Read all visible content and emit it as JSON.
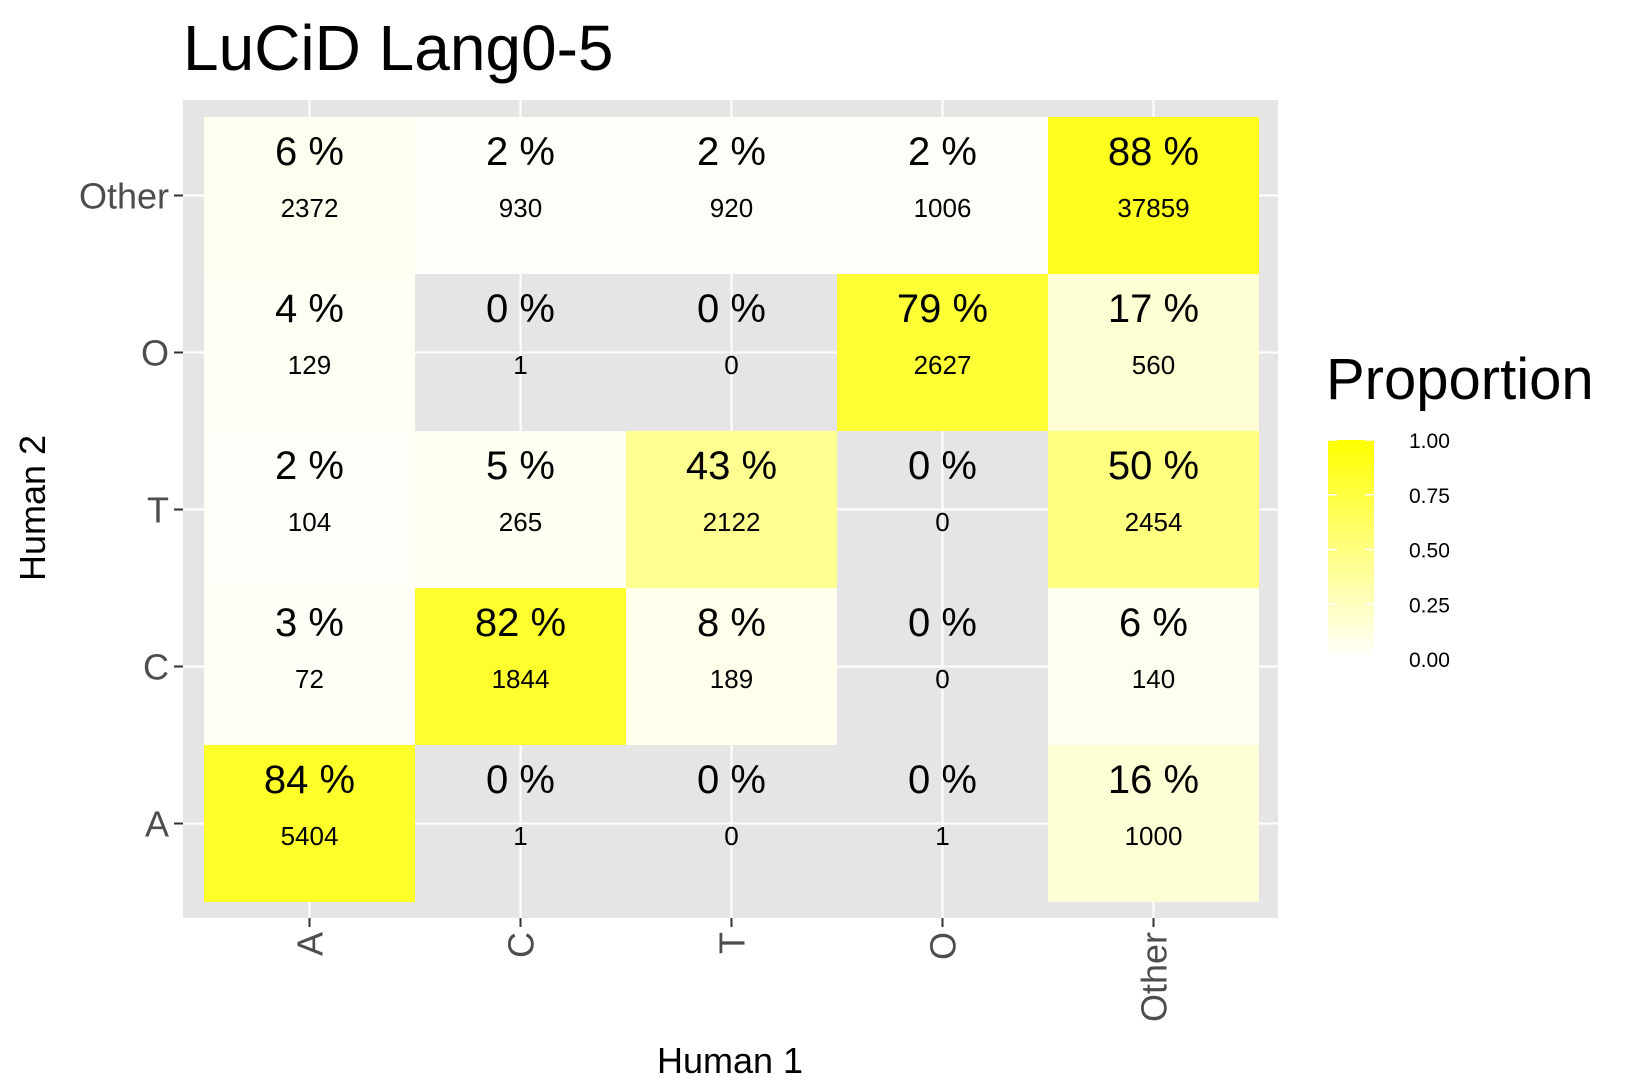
{
  "chart_data": {
    "type": "heatmap",
    "title": "LuCiD Lang0-5",
    "xlabel": "Human 1",
    "ylabel": "Human 2",
    "x_categories": [
      "A",
      "C",
      "T",
      "O",
      "Other"
    ],
    "y_categories": [
      "A",
      "C",
      "T",
      "O",
      "Other"
    ],
    "cells": [
      {
        "x": "A",
        "y": "Other",
        "proportion": 0.06,
        "pct_label": "6 %",
        "count": "2372"
      },
      {
        "x": "C",
        "y": "Other",
        "proportion": 0.02,
        "pct_label": "2 %",
        "count": "930"
      },
      {
        "x": "T",
        "y": "Other",
        "proportion": 0.02,
        "pct_label": "2 %",
        "count": "920"
      },
      {
        "x": "O",
        "y": "Other",
        "proportion": 0.02,
        "pct_label": "2 %",
        "count": "1006"
      },
      {
        "x": "Other",
        "y": "Other",
        "proportion": 0.88,
        "pct_label": "88 %",
        "count": "37859"
      },
      {
        "x": "A",
        "y": "O",
        "proportion": 0.04,
        "pct_label": "4 %",
        "count": "129"
      },
      {
        "x": "C",
        "y": "O",
        "proportion": 0.0,
        "pct_label": "0 %",
        "count": "1"
      },
      {
        "x": "T",
        "y": "O",
        "proportion": 0.0,
        "pct_label": "0 %",
        "count": "0"
      },
      {
        "x": "O",
        "y": "O",
        "proportion": 0.79,
        "pct_label": "79 %",
        "count": "2627"
      },
      {
        "x": "Other",
        "y": "O",
        "proportion": 0.17,
        "pct_label": "17 %",
        "count": "560"
      },
      {
        "x": "A",
        "y": "T",
        "proportion": 0.02,
        "pct_label": "2 %",
        "count": "104"
      },
      {
        "x": "C",
        "y": "T",
        "proportion": 0.05,
        "pct_label": "5 %",
        "count": "265"
      },
      {
        "x": "T",
        "y": "T",
        "proportion": 0.43,
        "pct_label": "43 %",
        "count": "2122"
      },
      {
        "x": "O",
        "y": "T",
        "proportion": 0.0,
        "pct_label": "0 %",
        "count": "0"
      },
      {
        "x": "Other",
        "y": "T",
        "proportion": 0.5,
        "pct_label": "50 %",
        "count": "2454"
      },
      {
        "x": "A",
        "y": "C",
        "proportion": 0.03,
        "pct_label": "3 %",
        "count": "72"
      },
      {
        "x": "C",
        "y": "C",
        "proportion": 0.82,
        "pct_label": "82 %",
        "count": "1844"
      },
      {
        "x": "T",
        "y": "C",
        "proportion": 0.08,
        "pct_label": "8 %",
        "count": "189"
      },
      {
        "x": "O",
        "y": "C",
        "proportion": 0.0,
        "pct_label": "0 %",
        "count": "0"
      },
      {
        "x": "Other",
        "y": "C",
        "proportion": 0.06,
        "pct_label": "6 %",
        "count": "140"
      },
      {
        "x": "A",
        "y": "A",
        "proportion": 0.84,
        "pct_label": "84 %",
        "count": "5404"
      },
      {
        "x": "C",
        "y": "A",
        "proportion": 0.0,
        "pct_label": "0 %",
        "count": "1"
      },
      {
        "x": "T",
        "y": "A",
        "proportion": 0.0,
        "pct_label": "0 %",
        "count": "0"
      },
      {
        "x": "O",
        "y": "A",
        "proportion": 0.0,
        "pct_label": "0 %",
        "count": "1"
      },
      {
        "x": "Other",
        "y": "A",
        "proportion": 0.16,
        "pct_label": "16 %",
        "count": "1000"
      }
    ],
    "legend": {
      "title": "Proportion",
      "ticks": [
        "1.00",
        "0.75",
        "0.50",
        "0.25",
        "0.00"
      ],
      "tick_values": [
        1.0,
        0.75,
        0.5,
        0.25,
        0.0
      ],
      "placement": "right"
    },
    "colors": {
      "low": "#ffffff",
      "high": "#ffff00",
      "panel_background": "#e5e5e5",
      "grid": "#ffffff"
    },
    "grid": true
  }
}
